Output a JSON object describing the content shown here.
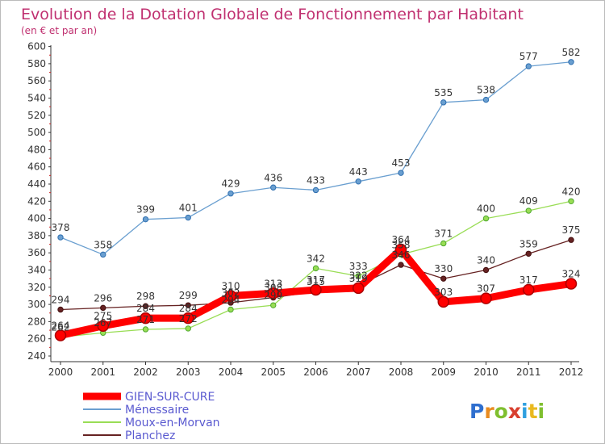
{
  "chart_data": {
    "type": "line",
    "title": "Evolution de la Dotation Globale de Fonctionnement par Habitant",
    "subtitle": "(en € et par an)",
    "x": [
      "2000",
      "2001",
      "2002",
      "2003",
      "2004",
      "2005",
      "2006",
      "2007",
      "2008",
      "2009",
      "2010",
      "2011",
      "2012"
    ],
    "ylim": [
      240,
      600
    ],
    "yticks": [
      240,
      260,
      280,
      300,
      320,
      340,
      360,
      380,
      400,
      420,
      440,
      460,
      480,
      500,
      520,
      540,
      560,
      580,
      600
    ],
    "grid": false,
    "legend_position": "bottom-left",
    "series": [
      {
        "name": "GIEN-SUR-CURE",
        "color": "#ff0000",
        "values": [
          264,
          275,
          284,
          284,
          310,
          313,
          317,
          319,
          364,
          303,
          307,
          317,
          324
        ]
      },
      {
        "name": "Ménessaire",
        "color": "#6a9fd0",
        "values": [
          378,
          358,
          399,
          401,
          429,
          436,
          433,
          443,
          453,
          535,
          538,
          577,
          582
        ]
      },
      {
        "name": "Moux-en-Morvan",
        "color": "#99dd55",
        "values": [
          262,
          267,
          271,
          272,
          294,
          299,
          342,
          333,
          358,
          371,
          400,
          409,
          420
        ]
      },
      {
        "name": "Planchez",
        "color": "#662222",
        "values": [
          294,
          296,
          298,
          299,
          302,
          308,
          315,
          322,
          346,
          330,
          340,
          359,
          375
        ]
      }
    ]
  },
  "brand": {
    "text": "Proxiti",
    "letters": [
      "P",
      "r",
      "o",
      "x",
      "i",
      "t",
      "i"
    ],
    "colors": [
      "#2f6fcf",
      "#e98b1f",
      "#7fbf2f",
      "#d83f2f",
      "#2f9fdf",
      "#e9b91f",
      "#7fbf2f"
    ]
  },
  "colors": {
    "title": "#c03070",
    "axis": "#333333",
    "frame": "#bbbbbb"
  }
}
